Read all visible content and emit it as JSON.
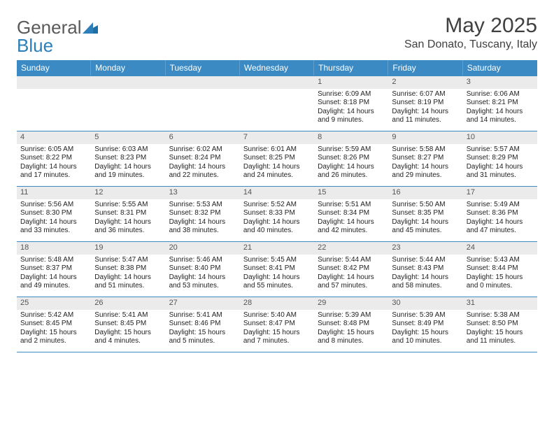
{
  "brand": {
    "text1": "General",
    "text2": "Blue",
    "mark_color": "#1d6fa5"
  },
  "title": "May 2025",
  "location": "San Donato, Tuscany, Italy",
  "colors": {
    "header_bg": "#3b8ac4",
    "header_divider": "#5fa0d0",
    "row_border": "#3b8ac4",
    "daynum_bg": "#ebebeb",
    "text": "#222222"
  },
  "weekdays": [
    "Sunday",
    "Monday",
    "Tuesday",
    "Wednesday",
    "Thursday",
    "Friday",
    "Saturday"
  ],
  "weeks": [
    [
      {
        "empty": true
      },
      {
        "empty": true
      },
      {
        "empty": true
      },
      {
        "empty": true
      },
      {
        "day": "1",
        "sunrise": "Sunrise: 6:09 AM",
        "sunset": "Sunset: 8:18 PM",
        "daylight": "Daylight: 14 hours and 9 minutes."
      },
      {
        "day": "2",
        "sunrise": "Sunrise: 6:07 AM",
        "sunset": "Sunset: 8:19 PM",
        "daylight": "Daylight: 14 hours and 11 minutes."
      },
      {
        "day": "3",
        "sunrise": "Sunrise: 6:06 AM",
        "sunset": "Sunset: 8:21 PM",
        "daylight": "Daylight: 14 hours and 14 minutes."
      }
    ],
    [
      {
        "day": "4",
        "sunrise": "Sunrise: 6:05 AM",
        "sunset": "Sunset: 8:22 PM",
        "daylight": "Daylight: 14 hours and 17 minutes."
      },
      {
        "day": "5",
        "sunrise": "Sunrise: 6:03 AM",
        "sunset": "Sunset: 8:23 PM",
        "daylight": "Daylight: 14 hours and 19 minutes."
      },
      {
        "day": "6",
        "sunrise": "Sunrise: 6:02 AM",
        "sunset": "Sunset: 8:24 PM",
        "daylight": "Daylight: 14 hours and 22 minutes."
      },
      {
        "day": "7",
        "sunrise": "Sunrise: 6:01 AM",
        "sunset": "Sunset: 8:25 PM",
        "daylight": "Daylight: 14 hours and 24 minutes."
      },
      {
        "day": "8",
        "sunrise": "Sunrise: 5:59 AM",
        "sunset": "Sunset: 8:26 PM",
        "daylight": "Daylight: 14 hours and 26 minutes."
      },
      {
        "day": "9",
        "sunrise": "Sunrise: 5:58 AM",
        "sunset": "Sunset: 8:27 PM",
        "daylight": "Daylight: 14 hours and 29 minutes."
      },
      {
        "day": "10",
        "sunrise": "Sunrise: 5:57 AM",
        "sunset": "Sunset: 8:29 PM",
        "daylight": "Daylight: 14 hours and 31 minutes."
      }
    ],
    [
      {
        "day": "11",
        "sunrise": "Sunrise: 5:56 AM",
        "sunset": "Sunset: 8:30 PM",
        "daylight": "Daylight: 14 hours and 33 minutes."
      },
      {
        "day": "12",
        "sunrise": "Sunrise: 5:55 AM",
        "sunset": "Sunset: 8:31 PM",
        "daylight": "Daylight: 14 hours and 36 minutes."
      },
      {
        "day": "13",
        "sunrise": "Sunrise: 5:53 AM",
        "sunset": "Sunset: 8:32 PM",
        "daylight": "Daylight: 14 hours and 38 minutes."
      },
      {
        "day": "14",
        "sunrise": "Sunrise: 5:52 AM",
        "sunset": "Sunset: 8:33 PM",
        "daylight": "Daylight: 14 hours and 40 minutes."
      },
      {
        "day": "15",
        "sunrise": "Sunrise: 5:51 AM",
        "sunset": "Sunset: 8:34 PM",
        "daylight": "Daylight: 14 hours and 42 minutes."
      },
      {
        "day": "16",
        "sunrise": "Sunrise: 5:50 AM",
        "sunset": "Sunset: 8:35 PM",
        "daylight": "Daylight: 14 hours and 45 minutes."
      },
      {
        "day": "17",
        "sunrise": "Sunrise: 5:49 AM",
        "sunset": "Sunset: 8:36 PM",
        "daylight": "Daylight: 14 hours and 47 minutes."
      }
    ],
    [
      {
        "day": "18",
        "sunrise": "Sunrise: 5:48 AM",
        "sunset": "Sunset: 8:37 PM",
        "daylight": "Daylight: 14 hours and 49 minutes."
      },
      {
        "day": "19",
        "sunrise": "Sunrise: 5:47 AM",
        "sunset": "Sunset: 8:38 PM",
        "daylight": "Daylight: 14 hours and 51 minutes."
      },
      {
        "day": "20",
        "sunrise": "Sunrise: 5:46 AM",
        "sunset": "Sunset: 8:40 PM",
        "daylight": "Daylight: 14 hours and 53 minutes."
      },
      {
        "day": "21",
        "sunrise": "Sunrise: 5:45 AM",
        "sunset": "Sunset: 8:41 PM",
        "daylight": "Daylight: 14 hours and 55 minutes."
      },
      {
        "day": "22",
        "sunrise": "Sunrise: 5:44 AM",
        "sunset": "Sunset: 8:42 PM",
        "daylight": "Daylight: 14 hours and 57 minutes."
      },
      {
        "day": "23",
        "sunrise": "Sunrise: 5:44 AM",
        "sunset": "Sunset: 8:43 PM",
        "daylight": "Daylight: 14 hours and 58 minutes."
      },
      {
        "day": "24",
        "sunrise": "Sunrise: 5:43 AM",
        "sunset": "Sunset: 8:44 PM",
        "daylight": "Daylight: 15 hours and 0 minutes."
      }
    ],
    [
      {
        "day": "25",
        "sunrise": "Sunrise: 5:42 AM",
        "sunset": "Sunset: 8:45 PM",
        "daylight": "Daylight: 15 hours and 2 minutes."
      },
      {
        "day": "26",
        "sunrise": "Sunrise: 5:41 AM",
        "sunset": "Sunset: 8:45 PM",
        "daylight": "Daylight: 15 hours and 4 minutes."
      },
      {
        "day": "27",
        "sunrise": "Sunrise: 5:41 AM",
        "sunset": "Sunset: 8:46 PM",
        "daylight": "Daylight: 15 hours and 5 minutes."
      },
      {
        "day": "28",
        "sunrise": "Sunrise: 5:40 AM",
        "sunset": "Sunset: 8:47 PM",
        "daylight": "Daylight: 15 hours and 7 minutes."
      },
      {
        "day": "29",
        "sunrise": "Sunrise: 5:39 AM",
        "sunset": "Sunset: 8:48 PM",
        "daylight": "Daylight: 15 hours and 8 minutes."
      },
      {
        "day": "30",
        "sunrise": "Sunrise: 5:39 AM",
        "sunset": "Sunset: 8:49 PM",
        "daylight": "Daylight: 15 hours and 10 minutes."
      },
      {
        "day": "31",
        "sunrise": "Sunrise: 5:38 AM",
        "sunset": "Sunset: 8:50 PM",
        "daylight": "Daylight: 15 hours and 11 minutes."
      }
    ]
  ]
}
